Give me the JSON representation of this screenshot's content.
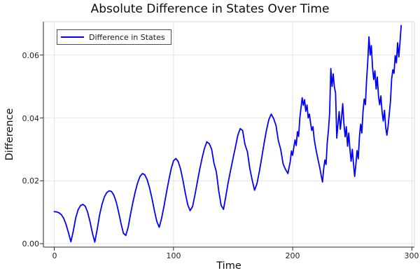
{
  "title": "Absolute Difference in States Over Time",
  "legend": {
    "label": "Difference in States",
    "line_color": "#0000ff"
  },
  "axes": {
    "x_label": "Time",
    "y_label": "Difference",
    "x_tick_labels": [
      "0",
      "100",
      "200",
      "300"
    ],
    "y_tick_labels": [
      "0.00",
      "0.02",
      "0.04",
      "0.06"
    ]
  },
  "colors": {
    "line": "#0000ff",
    "grid": "#e4e4e4",
    "axis": "#2b2b2b",
    "frame_light": "#d9d9d9",
    "background": "#ffffff",
    "text": "#111111"
  },
  "chart_data": {
    "type": "line",
    "title": "Absolute Difference in States Over Time",
    "xlabel": "Time",
    "ylabel": "Difference",
    "xlim": [
      -9.1,
      302.1
    ],
    "ylim": [
      -0.0011,
      0.0706
    ],
    "x_tick_values": [
      0,
      100,
      200,
      300
    ],
    "y_tick_values": [
      0,
      0.02,
      0.04,
      0.06
    ],
    "grid": true,
    "legend_position": "top-left",
    "series": [
      {
        "name": "Difference in States",
        "color": "#0000ff",
        "points": [
          [
            0,
            0.0102
          ],
          [
            2,
            0.0101
          ],
          [
            4,
            0.0098
          ],
          [
            6,
            0.0092
          ],
          [
            8,
            0.008
          ],
          [
            10,
            0.006
          ],
          [
            12,
            0.0034
          ],
          [
            14,
            0.0006
          ],
          [
            16,
            0.004
          ],
          [
            18,
            0.0082
          ],
          [
            20,
            0.0108
          ],
          [
            22,
            0.0121
          ],
          [
            24,
            0.0125
          ],
          [
            26,
            0.0119
          ],
          [
            28,
            0.01
          ],
          [
            30,
            0.007
          ],
          [
            32,
            0.0034
          ],
          [
            34,
            0.0005
          ],
          [
            36,
            0.0045
          ],
          [
            38,
            0.009
          ],
          [
            40,
            0.0124
          ],
          [
            42,
            0.0148
          ],
          [
            44,
            0.0162
          ],
          [
            46,
            0.0168
          ],
          [
            48,
            0.0166
          ],
          [
            50,
            0.0154
          ],
          [
            52,
            0.0132
          ],
          [
            54,
            0.01
          ],
          [
            56,
            0.0064
          ],
          [
            58,
            0.0033
          ],
          [
            60,
            0.0026
          ],
          [
            62,
            0.0052
          ],
          [
            64,
            0.0094
          ],
          [
            66,
            0.0132
          ],
          [
            68,
            0.0166
          ],
          [
            70,
            0.0194
          ],
          [
            72,
            0.0214
          ],
          [
            74,
            0.0223
          ],
          [
            76,
            0.0219
          ],
          [
            78,
            0.0203
          ],
          [
            80,
            0.0177
          ],
          [
            82,
            0.0143
          ],
          [
            84,
            0.0105
          ],
          [
            86,
            0.0071
          ],
          [
            88,
            0.0052
          ],
          [
            90,
            0.008
          ],
          [
            92,
            0.0118
          ],
          [
            94,
            0.016
          ],
          [
            96,
            0.02
          ],
          [
            98,
            0.0237
          ],
          [
            100,
            0.0263
          ],
          [
            102,
            0.0271
          ],
          [
            104,
            0.0261
          ],
          [
            106,
            0.0237
          ],
          [
            108,
            0.0201
          ],
          [
            110,
            0.016
          ],
          [
            112,
            0.0124
          ],
          [
            114,
            0.0105
          ],
          [
            116,
            0.0118
          ],
          [
            118,
            0.0155
          ],
          [
            120,
            0.0196
          ],
          [
            122,
            0.0236
          ],
          [
            124,
            0.0272
          ],
          [
            126,
            0.0303
          ],
          [
            128,
            0.0324
          ],
          [
            130,
            0.0318
          ],
          [
            132,
            0.0301
          ],
          [
            134,
            0.0256
          ],
          [
            136,
            0.0228
          ],
          [
            138,
            0.0168
          ],
          [
            140,
            0.0122
          ],
          [
            142,
            0.0109
          ],
          [
            144,
            0.0152
          ],
          [
            146,
            0.0196
          ],
          [
            148,
            0.0235
          ],
          [
            150,
            0.0272
          ],
          [
            152,
            0.0308
          ],
          [
            154,
            0.0345
          ],
          [
            156,
            0.0366
          ],
          [
            158,
            0.036
          ],
          [
            160,
            0.0315
          ],
          [
            162,
            0.0293
          ],
          [
            164,
            0.024
          ],
          [
            166,
            0.0203
          ],
          [
            168,
            0.017
          ],
          [
            170,
            0.019
          ],
          [
            172,
            0.0228
          ],
          [
            174,
            0.0272
          ],
          [
            176,
            0.0318
          ],
          [
            178,
            0.036
          ],
          [
            180,
            0.0395
          ],
          [
            182,
            0.0412
          ],
          [
            184,
            0.0398
          ],
          [
            186,
            0.0376
          ],
          [
            188,
            0.0327
          ],
          [
            190,
            0.0299
          ],
          [
            192,
            0.0253
          ],
          [
            194,
            0.0236
          ],
          [
            196,
            0.0223
          ],
          [
            197,
            0.0243
          ],
          [
            198,
            0.0262
          ],
          [
            199,
            0.0295
          ],
          [
            200,
            0.0281
          ],
          [
            201,
            0.0307
          ],
          [
            202,
            0.033
          ],
          [
            203,
            0.0312
          ],
          [
            204,
            0.0356
          ],
          [
            205,
            0.0341
          ],
          [
            206,
            0.0398
          ],
          [
            207,
            0.0432
          ],
          [
            208,
            0.0464
          ],
          [
            209,
            0.044
          ],
          [
            210,
            0.0458
          ],
          [
            211,
            0.0421
          ],
          [
            212,
            0.0441
          ],
          [
            213,
            0.04
          ],
          [
            214,
            0.0412
          ],
          [
            215,
            0.0383
          ],
          [
            216,
            0.036
          ],
          [
            217,
            0.0372
          ],
          [
            218,
            0.0334
          ],
          [
            219,
            0.0311
          ],
          [
            220,
            0.029
          ],
          [
            221,
            0.0272
          ],
          [
            222,
            0.0254
          ],
          [
            223,
            0.0236
          ],
          [
            224,
            0.0215
          ],
          [
            225,
            0.0196
          ],
          [
            226,
            0.0238
          ],
          [
            227,
            0.0266
          ],
          [
            228,
            0.0252
          ],
          [
            229,
            0.0322
          ],
          [
            230,
            0.036
          ],
          [
            231,
            0.0415
          ],
          [
            232,
            0.0557
          ],
          [
            233,
            0.05
          ],
          [
            234,
            0.054
          ],
          [
            235,
            0.0498
          ],
          [
            236,
            0.0479
          ],
          [
            237,
            0.0336
          ],
          [
            238,
            0.038
          ],
          [
            239,
            0.042
          ],
          [
            240,
            0.0364
          ],
          [
            241,
            0.04
          ],
          [
            242,
            0.0445
          ],
          [
            243,
            0.0382
          ],
          [
            244,
            0.034
          ],
          [
            245,
            0.0372
          ],
          [
            246,
            0.031
          ],
          [
            247,
            0.0352
          ],
          [
            248,
            0.03
          ],
          [
            249,
            0.0262
          ],
          [
            250,
            0.03
          ],
          [
            251,
            0.0254
          ],
          [
            252,
            0.0214
          ],
          [
            253,
            0.0252
          ],
          [
            254,
            0.0296
          ],
          [
            255,
            0.027
          ],
          [
            256,
            0.034
          ],
          [
            257,
            0.038
          ],
          [
            258,
            0.0352
          ],
          [
            259,
            0.042
          ],
          [
            260,
            0.046
          ],
          [
            261,
            0.0442
          ],
          [
            262,
            0.052
          ],
          [
            263,
            0.058
          ],
          [
            264,
            0.0658
          ],
          [
            265,
            0.06
          ],
          [
            266,
            0.063
          ],
          [
            267,
            0.056
          ],
          [
            268,
            0.0522
          ],
          [
            269,
            0.055
          ],
          [
            270,
            0.0492
          ],
          [
            271,
            0.053
          ],
          [
            272,
            0.047
          ],
          [
            273,
            0.0442
          ],
          [
            274,
            0.047
          ],
          [
            275,
            0.042
          ],
          [
            276,
            0.039
          ],
          [
            277,
            0.0424
          ],
          [
            278,
            0.037
          ],
          [
            279,
            0.0345
          ],
          [
            280,
            0.0374
          ],
          [
            281,
            0.0412
          ],
          [
            282,
            0.0452
          ],
          [
            283,
            0.0524
          ],
          [
            284,
            0.0553
          ],
          [
            285,
            0.0542
          ],
          [
            286,
            0.0598
          ],
          [
            287,
            0.0575
          ],
          [
            288,
            0.0639
          ],
          [
            289,
            0.0594
          ],
          [
            290,
            0.0639
          ],
          [
            291,
            0.0694
          ]
        ]
      }
    ]
  }
}
